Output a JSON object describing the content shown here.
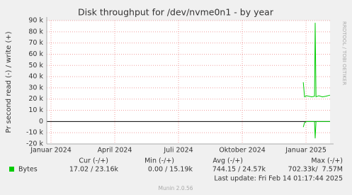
{
  "chart_data": {
    "type": "line",
    "title": "Disk throughput for /dev/nvme0n1 - by year",
    "y_label": "Pr second read (-) / write (+)",
    "watermark": "RRDTOOL / TOBI OETIKER",
    "xlim": [
      -0.2,
      13.13
    ],
    "xticks": [
      {
        "value": 0,
        "label": "Januar 2024"
      },
      {
        "value": 3,
        "label": "April 2024"
      },
      {
        "value": 6,
        "label": "Juli 2024"
      },
      {
        "value": 9,
        "label": "Oktober 2024"
      },
      {
        "value": 12,
        "label": "Januar 2025"
      }
    ],
    "ylim": [
      -20000,
      90000
    ],
    "yticks": [
      {
        "value": -20000,
        "label": "-20 k"
      },
      {
        "value": -10000,
        "label": "-10 k"
      },
      0,
      {
        "value": 10000,
        "label": "10 k"
      },
      {
        "value": 20000,
        "label": "20 k"
      },
      {
        "value": 30000,
        "label": "30 k"
      },
      {
        "value": 40000,
        "label": "40 k"
      },
      {
        "value": 50000,
        "label": "50 k"
      },
      {
        "value": 60000,
        "label": "60 k"
      },
      {
        "value": 70000,
        "label": "70 k"
      },
      {
        "value": 80000,
        "label": "80 k"
      },
      {
        "value": 90000,
        "label": "90 k"
      }
    ],
    "grid": true,
    "series": [
      {
        "name": "Bytes",
        "color": "#00cc00",
        "x": [
          11.87,
          11.93,
          12.03,
          12.27,
          12.4,
          12.43,
          12.47,
          12.6,
          12.77,
          12.93,
          13.13
        ],
        "values": [
          35000,
          22000,
          23000,
          22000,
          22500,
          88000,
          22000,
          23000,
          22000,
          22500,
          23500
        ],
        "read_values": [
          -5000,
          -1000,
          0,
          0,
          0,
          -15000,
          0,
          0,
          0,
          0,
          0
        ]
      }
    ],
    "stat_headers": [
      "Cur (-/+)",
      "Min (-/+)",
      "Avg (-/+)",
      "Max (-/+)"
    ],
    "stats": [
      "17.02 / 23.16k",
      "0.00 / 15.19k",
      "744.15 / 24.57k",
      "702.33k/  7.57M"
    ],
    "last_update": "Last update: Fri Feb 14 01:17:44 2025",
    "footer": "Munin 2.0.56"
  }
}
